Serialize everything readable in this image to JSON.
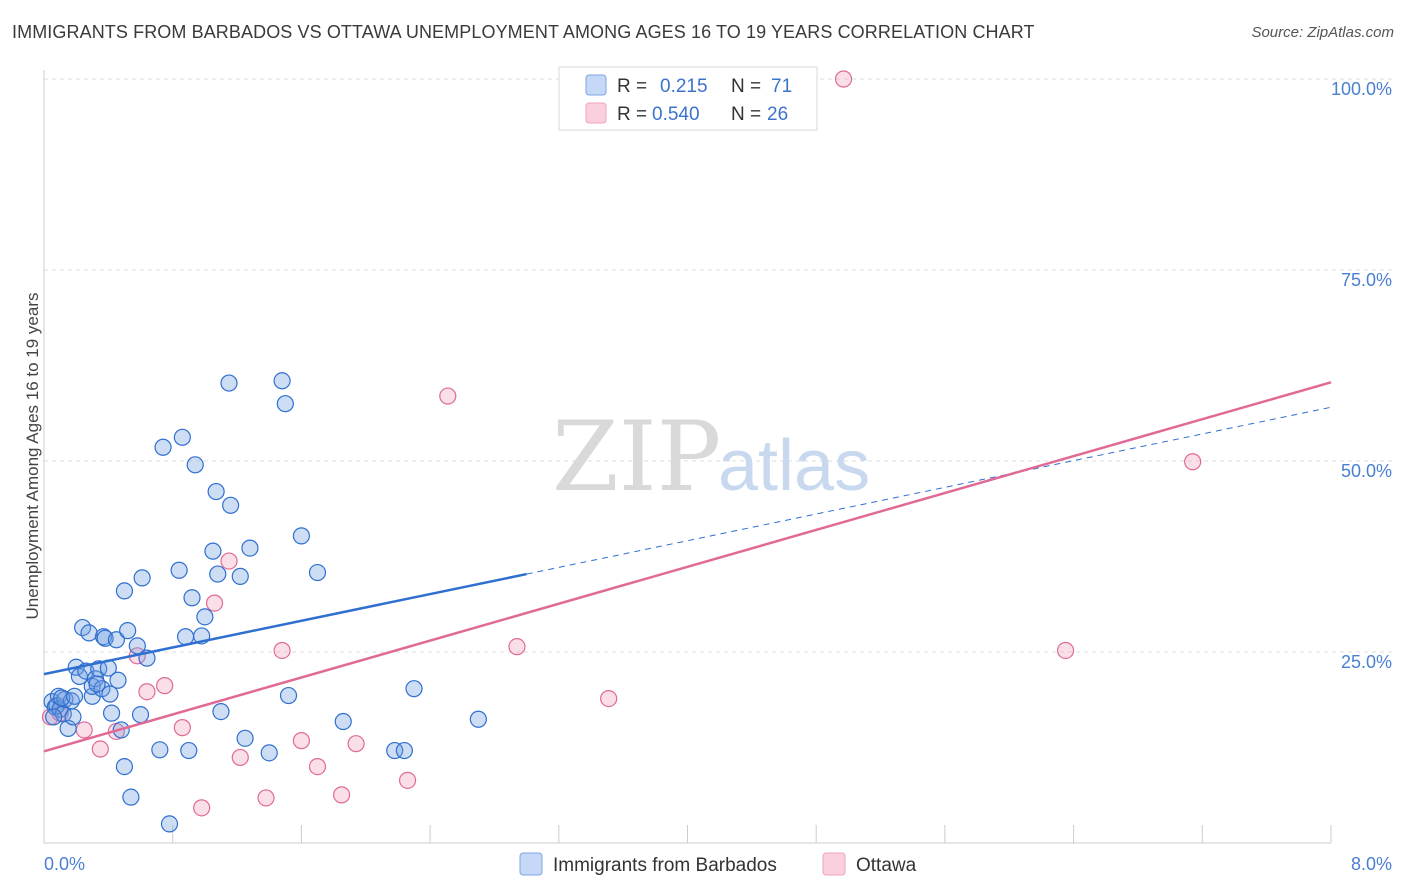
{
  "title": "IMMIGRANTS FROM BARBADOS VS OTTAWA UNEMPLOYMENT AMONG AGES 16 TO 19 YEARS CORRELATION CHART",
  "source": "Source: ZipAtlas.com",
  "watermark": {
    "zip": "ZIP",
    "atlas": "atlas"
  },
  "colors": {
    "blue": "#6f9fe0",
    "blue_line": "#2f6fd0",
    "pink": "#f2a3bd",
    "pink_line": "#e06a95"
  },
  "legend": {
    "r_label": "R =",
    "n_label": "N =",
    "blue": {
      "r": "0.215",
      "n": "71"
    },
    "pink": {
      "r": "0.540",
      "n": "26"
    }
  },
  "chart_data": {
    "type": "scatter",
    "title": "IMMIGRANTS FROM BARBADOS VS OTTAWA UNEMPLOYMENT AMONG AGES 16 TO 19 YEARS CORRELATION CHART",
    "xlabel": "",
    "ylabel": "Unemployment Among Ages 16 to 19 years",
    "xlim": [
      0,
      8
    ],
    "ylim": [
      0,
      100
    ],
    "x_tick_labels": [
      "0.0%",
      "8.0%"
    ],
    "y_ticks": [
      25,
      50,
      75,
      100
    ],
    "y_tick_labels": [
      "25.0%",
      "50.0%",
      "75.0%",
      "100.0%"
    ],
    "series": [
      {
        "name": "Immigrants from Barbados",
        "color": "#6f9fe0",
        "trend": {
          "x0": 0,
          "y0": 22.1,
          "x1": 3.0,
          "y1": 35.2,
          "dashed_to_x": 8.0
        },
        "points": [
          [
            0.05,
            18.5
          ],
          [
            0.07,
            17.8
          ],
          [
            0.08,
            18.0
          ],
          [
            0.09,
            19.2
          ],
          [
            0.1,
            17.5
          ],
          [
            0.12,
            16.9
          ],
          [
            0.13,
            18.8
          ],
          [
            0.15,
            15.0
          ],
          [
            0.17,
            18.6
          ],
          [
            0.18,
            16.5
          ],
          [
            0.2,
            23.0
          ],
          [
            0.22,
            21.8
          ],
          [
            0.24,
            28.2
          ],
          [
            0.26,
            22.5
          ],
          [
            0.28,
            27.5
          ],
          [
            0.3,
            19.2
          ],
          [
            0.3,
            20.5
          ],
          [
            0.32,
            21.5
          ],
          [
            0.34,
            22.8
          ],
          [
            0.36,
            20.2
          ],
          [
            0.37,
            27.0
          ],
          [
            0.38,
            26.8
          ],
          [
            0.4,
            22.9
          ],
          [
            0.41,
            19.5
          ],
          [
            0.42,
            17.0
          ],
          [
            0.45,
            26.6
          ],
          [
            0.46,
            21.3
          ],
          [
            0.48,
            14.8
          ],
          [
            0.5,
            10.0
          ],
          [
            0.5,
            33.0
          ],
          [
            0.52,
            27.8
          ],
          [
            0.54,
            6.0
          ],
          [
            0.58,
            25.8
          ],
          [
            0.6,
            16.8
          ],
          [
            0.61,
            34.7
          ],
          [
            0.64,
            24.2
          ],
          [
            0.72,
            12.2
          ],
          [
            0.74,
            51.8
          ],
          [
            0.78,
            2.5
          ],
          [
            0.84,
            35.7
          ],
          [
            0.86,
            53.1
          ],
          [
            0.88,
            27.0
          ],
          [
            0.9,
            12.1
          ],
          [
            0.92,
            32.1
          ],
          [
            0.94,
            49.5
          ],
          [
            0.98,
            27.1
          ],
          [
            1.0,
            29.6
          ],
          [
            1.05,
            38.2
          ],
          [
            1.07,
            46.0
          ],
          [
            1.08,
            35.2
          ],
          [
            1.1,
            17.2
          ],
          [
            1.15,
            60.2
          ],
          [
            1.16,
            44.2
          ],
          [
            1.22,
            34.9
          ],
          [
            1.25,
            13.7
          ],
          [
            1.28,
            38.6
          ],
          [
            1.4,
            11.8
          ],
          [
            1.48,
            60.5
          ],
          [
            1.5,
            57.5
          ],
          [
            1.52,
            19.3
          ],
          [
            1.6,
            40.2
          ],
          [
            1.7,
            35.4
          ],
          [
            1.86,
            15.9
          ],
          [
            2.18,
            12.1
          ],
          [
            2.24,
            12.1
          ],
          [
            2.3,
            20.2
          ],
          [
            2.7,
            16.2
          ],
          [
            0.06,
            16.5
          ],
          [
            0.11,
            19.0
          ],
          [
            0.19,
            19.2
          ],
          [
            0.33,
            20.8
          ]
        ]
      },
      {
        "name": "Ottawa",
        "color": "#f2a3bd",
        "trend": {
          "x0": 0,
          "y0": 12.0,
          "x1": 8.0,
          "y1": 60.3
        },
        "points": [
          [
            0.04,
            16.5
          ],
          [
            0.1,
            17.0
          ],
          [
            0.25,
            14.8
          ],
          [
            0.35,
            12.3
          ],
          [
            0.45,
            14.6
          ],
          [
            0.58,
            24.5
          ],
          [
            0.64,
            19.8
          ],
          [
            0.75,
            20.6
          ],
          [
            0.86,
            15.1
          ],
          [
            0.98,
            4.6
          ],
          [
            1.06,
            31.4
          ],
          [
            1.15,
            36.9
          ],
          [
            1.22,
            11.2
          ],
          [
            1.38,
            5.9
          ],
          [
            1.48,
            25.2
          ],
          [
            1.6,
            13.4
          ],
          [
            1.7,
            10.0
          ],
          [
            1.85,
            6.3
          ],
          [
            1.94,
            13.0
          ],
          [
            2.26,
            8.2
          ],
          [
            2.51,
            58.5
          ],
          [
            2.94,
            25.7
          ],
          [
            3.51,
            18.9
          ],
          [
            4.97,
            100.0
          ],
          [
            6.35,
            25.2
          ],
          [
            7.14,
            49.9
          ]
        ]
      }
    ]
  }
}
